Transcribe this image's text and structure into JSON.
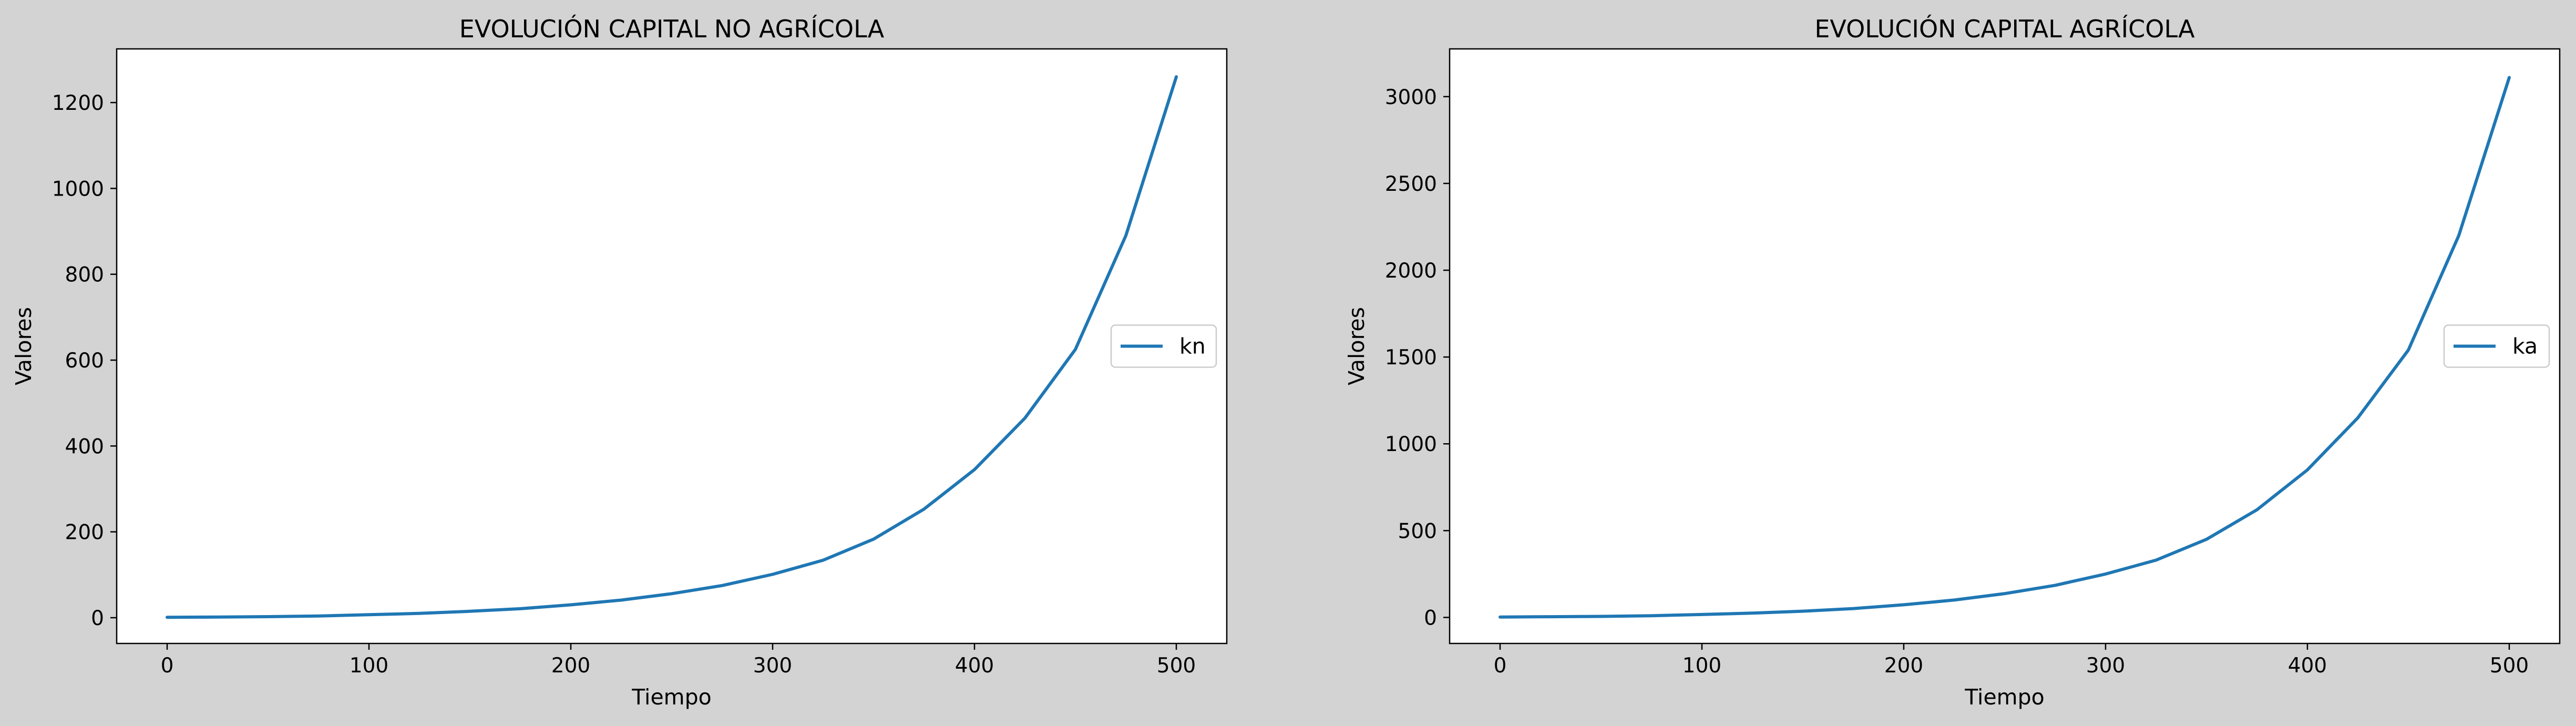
{
  "figure": {
    "background": "#d3d3d3",
    "axes_background": "#ffffff",
    "line_color": "#1f77b4"
  },
  "chart_data": [
    {
      "type": "line",
      "title": "EVOLUCIÓN CAPITAL NO AGRÍCOLA",
      "xlabel": "Tiempo",
      "ylabel": "Valores",
      "xlim": [
        -25,
        525
      ],
      "ylim": [
        -60,
        1325
      ],
      "xticks": [
        0,
        100,
        200,
        300,
        400,
        500
      ],
      "yticks": [
        0,
        200,
        400,
        600,
        800,
        1000,
        1200
      ],
      "grid": false,
      "legend_position": "center-right",
      "series": [
        {
          "name": "kn",
          "color": "#1f77b4",
          "x": [
            0,
            25,
            50,
            75,
            100,
            125,
            150,
            175,
            200,
            225,
            250,
            275,
            300,
            325,
            350,
            375,
            400,
            425,
            450,
            475,
            500
          ],
          "y": [
            1,
            1.5,
            2.5,
            4,
            7,
            10,
            15,
            21,
            30,
            41,
            56,
            75,
            101,
            134,
            183,
            253,
            345,
            465,
            625,
            890,
            1260
          ]
        }
      ]
    },
    {
      "type": "line",
      "title": "EVOLUCIÓN CAPITAL AGRÍCOLA",
      "xlabel": "Tiempo",
      "ylabel": "Valores",
      "xlim": [
        -25,
        525
      ],
      "ylim": [
        -150,
        3275
      ],
      "xticks": [
        0,
        100,
        200,
        300,
        400,
        500
      ],
      "yticks": [
        0,
        500,
        1000,
        1500,
        2000,
        2500,
        3000
      ],
      "grid": false,
      "legend_position": "center-right",
      "series": [
        {
          "name": "ka",
          "color": "#1f77b4",
          "x": [
            0,
            25,
            50,
            75,
            100,
            125,
            150,
            175,
            200,
            225,
            250,
            275,
            300,
            325,
            350,
            375,
            400,
            425,
            450,
            475,
            500
          ],
          "y": [
            2,
            4,
            6,
            10,
            17,
            25,
            36,
            51,
            73,
            100,
            137,
            185,
            250,
            330,
            450,
            620,
            850,
            1150,
            1540,
            2200,
            3110
          ]
        }
      ]
    }
  ]
}
